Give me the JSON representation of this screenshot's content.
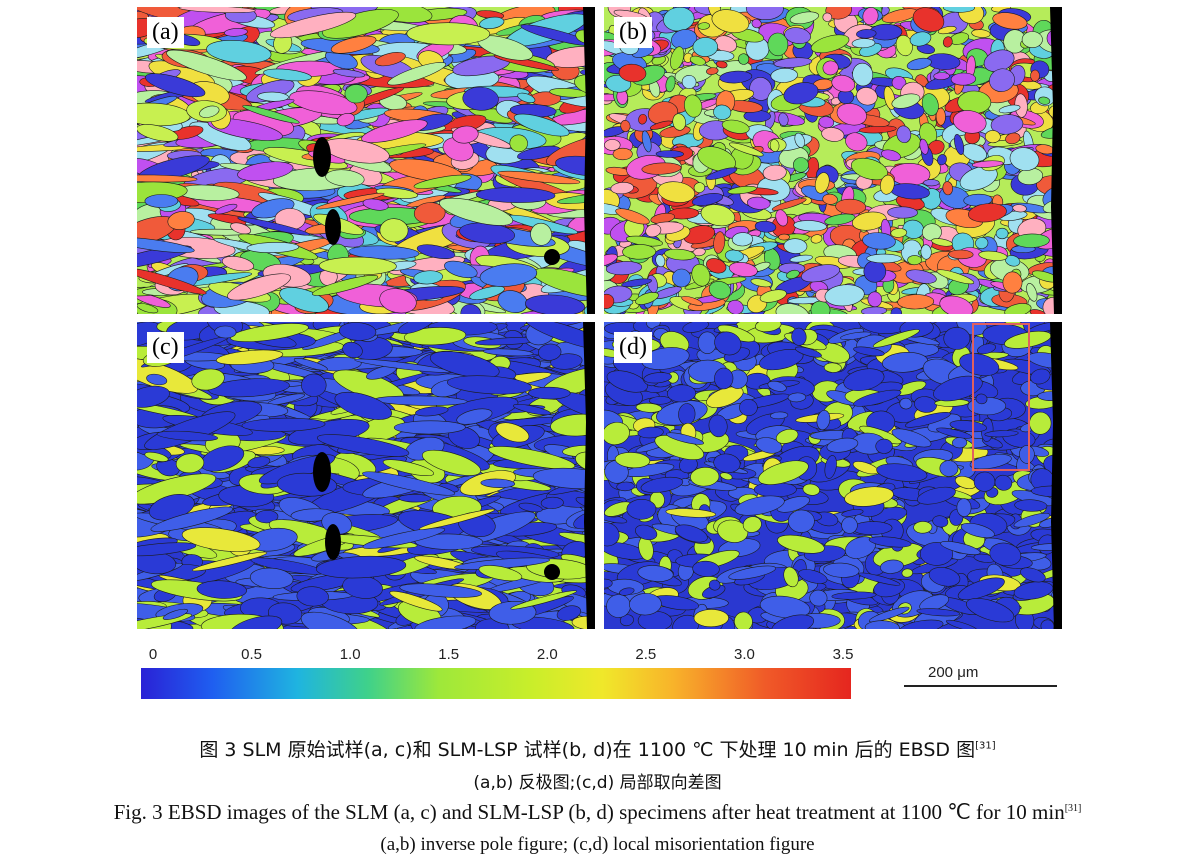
{
  "panels": [
    {
      "label": "(a)",
      "type": "ipf"
    },
    {
      "label": "(b)",
      "type": "ipf"
    },
    {
      "label": "(c)",
      "type": "kam"
    },
    {
      "label": "(d)",
      "type": "kam"
    }
  ],
  "colorbar": {
    "ticks": [
      "0",
      "0.5",
      "1.0",
      "1.5",
      "2.0",
      "2.5",
      "3.0",
      "3.5"
    ]
  },
  "scale_bar": {
    "label": "200 μm"
  },
  "caption": {
    "zh_line1_a": "图 3   SLM 原始试样(a, c)和 SLM-LSP 试样(b, d)在 1100 ℃ 下处理 10 min 后的 EBSD 图",
    "zh_ref": "[31]",
    "zh_line2": "(a,b) 反极图;(c,d) 局部取向差图",
    "en_line1_a": "Fig. 3   EBSD images of the SLM (a, c) and SLM-LSP (b, d) specimens after heat treatment at 1100 ℃ for 10 min",
    "en_ref": "[31]",
    "en_line2": "(a,b) inverse pole figure; (c,d) local misorientation figure"
  }
}
